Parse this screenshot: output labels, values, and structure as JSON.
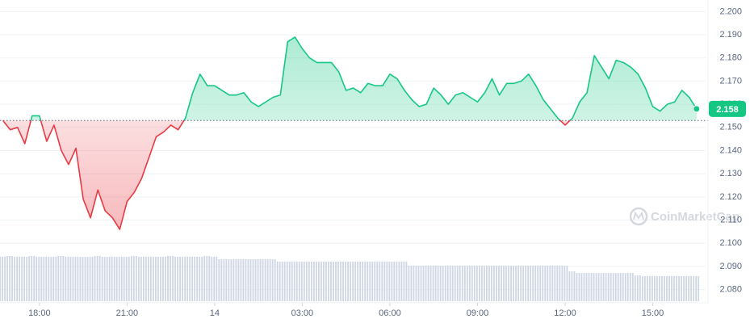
{
  "chart_data": {
    "type": "line",
    "x": [
      16.75,
      17,
      17.25,
      17.5,
      17.75,
      18,
      18.25,
      18.5,
      18.75,
      19,
      19.25,
      19.5,
      19.75,
      20,
      20.25,
      20.5,
      20.75,
      21,
      21.25,
      21.5,
      21.75,
      22,
      22.25,
      22.5,
      22.75,
      23,
      23.25,
      23.5,
      23.75,
      24,
      24.25,
      24.5,
      24.75,
      25,
      25.25,
      25.5,
      25.75,
      26,
      26.25,
      26.5,
      26.75,
      27,
      27.25,
      27.5,
      27.75,
      28,
      28.25,
      28.5,
      28.75,
      29,
      29.25,
      29.5,
      29.75,
      30,
      30.25,
      30.5,
      30.75,
      31,
      31.25,
      31.5,
      31.75,
      32,
      32.25,
      32.5,
      32.75,
      33,
      33.25,
      33.5,
      33.75,
      34,
      34.25,
      34.5,
      34.75,
      35,
      35.25,
      35.5,
      35.75,
      36,
      36.25,
      36.5,
      36.75,
      37,
      37.25,
      37.5,
      37.75,
      38,
      38.25,
      38.5,
      38.75,
      39,
      39.25,
      39.5,
      39.75,
      40,
      40.25,
      40.5
    ],
    "series": [
      {
        "color": "#16c784",
        "down_color": "#ea3943",
        "values": [
          2.153,
          2.149,
          2.15,
          2.143,
          2.155,
          2.155,
          2.144,
          2.151,
          2.14,
          2.134,
          2.141,
          2.119,
          2.111,
          2.123,
          2.114,
          2.111,
          2.106,
          2.118,
          2.122,
          2.128,
          2.137,
          2.146,
          2.148,
          2.151,
          2.149,
          2.154,
          2.165,
          2.173,
          2.168,
          2.168,
          2.166,
          2.164,
          2.164,
          2.165,
          2.161,
          2.159,
          2.161,
          2.163,
          2.164,
          2.187,
          2.189,
          2.184,
          2.18,
          2.178,
          2.178,
          2.178,
          2.174,
          2.166,
          2.167,
          2.165,
          2.169,
          2.168,
          2.168,
          2.173,
          2.171,
          2.166,
          2.162,
          2.159,
          2.16,
          2.167,
          2.164,
          2.16,
          2.164,
          2.165,
          2.163,
          2.161,
          2.165,
          2.171,
          2.164,
          2.169,
          2.169,
          2.17,
          2.173,
          2.168,
          2.162,
          2.158,
          2.154,
          2.151,
          2.154,
          2.161,
          2.165,
          2.181,
          2.176,
          2.171,
          2.179,
          2.178,
          2.176,
          2.173,
          2.167,
          2.159,
          2.157,
          2.16,
          2.161,
          2.166,
          2.163,
          2.158
        ]
      }
    ],
    "baseline": 2.153,
    "volume": {
      "color": "#cfd6e4",
      "ylim": [
        0,
        100
      ],
      "values": [
        55,
        56,
        55,
        55,
        56,
        55,
        55,
        55,
        56,
        55,
        55,
        55,
        55,
        56,
        55,
        55,
        55,
        55,
        56,
        55,
        55,
        55,
        55,
        56,
        55,
        55,
        55,
        55,
        56,
        55,
        52,
        52,
        52,
        52,
        52,
        52,
        52,
        52,
        49,
        49,
        49,
        49,
        49,
        49,
        49,
        49,
        49,
        49,
        49,
        49,
        49,
        49,
        49,
        49,
        49,
        49,
        44,
        44,
        44,
        44,
        44,
        44,
        44,
        44,
        44,
        44,
        44,
        44,
        44,
        44,
        44,
        44,
        44,
        44,
        44,
        44,
        44,
        44,
        37,
        35,
        35,
        35,
        35,
        35,
        35,
        35,
        35,
        32,
        31,
        31,
        31,
        31,
        31,
        31,
        31,
        31
      ]
    },
    "xlim": [
      16.65,
      40.7
    ],
    "ylim": [
      2.075,
      2.205
    ],
    "xticks": [
      {
        "value": 18,
        "label": "18:00"
      },
      {
        "value": 21,
        "label": "21:00"
      },
      {
        "value": 24,
        "label": "14"
      },
      {
        "value": 27,
        "label": "03:00"
      },
      {
        "value": 30,
        "label": "06:00"
      },
      {
        "value": 33,
        "label": "09:00"
      },
      {
        "value": 36,
        "label": "12:00"
      },
      {
        "value": 39,
        "label": "15:00"
      }
    ],
    "yticks": [
      {
        "value": 2.08,
        "label": "2.080"
      },
      {
        "value": 2.09,
        "label": "2.090"
      },
      {
        "value": 2.1,
        "label": "2.100"
      },
      {
        "value": 2.11,
        "label": "2.110"
      },
      {
        "value": 2.12,
        "label": "2.120"
      },
      {
        "value": 2.13,
        "label": "2.130"
      },
      {
        "value": 2.14,
        "label": "2.140"
      },
      {
        "value": 2.15,
        "label": "2.150"
      },
      {
        "value": 2.16,
        "label": "2.160"
      },
      {
        "value": 2.17,
        "label": "2.170"
      },
      {
        "value": 2.18,
        "label": "2.180"
      },
      {
        "value": 2.19,
        "label": "2.190"
      },
      {
        "value": 2.2,
        "label": "2.200"
      }
    ],
    "grid": true,
    "watermark": "CoinMarketCap"
  }
}
